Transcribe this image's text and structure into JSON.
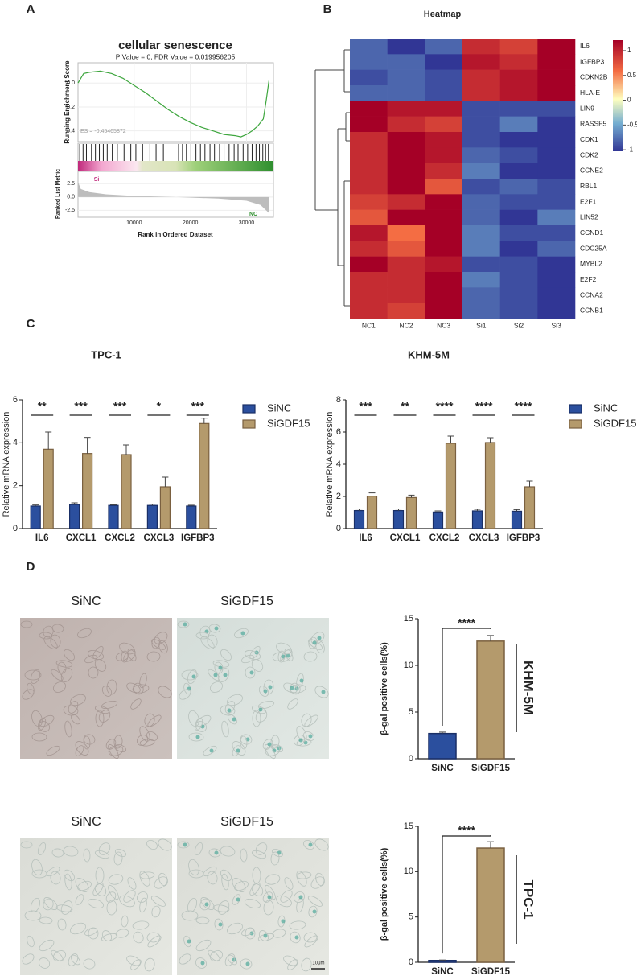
{
  "panel_labels": [
    "A",
    "B",
    "C",
    "D"
  ],
  "images": [
    {
      "label": "SiNC"
    },
    {
      "label": "SiGDF15"
    },
    {
      "label": "SiNC"
    },
    {
      "label": "SiGDF15"
    }
  ],
  "scale_bar": "10μm",
  "chart_data": [
    {
      "type": "line",
      "title": "cellular senescence",
      "subtitle": "P Value = 0; FDR Value = 0.019956205",
      "ylabel": "Running Enrichment Score",
      "xlabel": "Rank in Ordered Dataset",
      "annotation": "ES = -0.45465872",
      "color": "#3ea63e",
      "x": [
        0,
        1000,
        2000,
        4000,
        6000,
        8000,
        10000,
        12000,
        14000,
        16000,
        18000,
        20000,
        22000,
        24000,
        26000,
        28000,
        29000,
        30000,
        31000,
        32000,
        33000,
        33500,
        34000
      ],
      "y": [
        0,
        0.08,
        0.09,
        0.1,
        0.08,
        0.04,
        -0.02,
        -0.08,
        -0.15,
        -0.22,
        -0.28,
        -0.33,
        -0.37,
        -0.4,
        -0.43,
        -0.44,
        -0.45,
        -0.43,
        -0.4,
        -0.36,
        -0.3,
        -0.15,
        0.02
      ],
      "xlim": [
        0,
        34800
      ],
      "ylim": [
        -0.49,
        0.17
      ],
      "xticks": [
        10000,
        20000,
        30000
      ],
      "yticks": [
        {
          "value": 0,
          "label": "0.0"
        },
        {
          "value": -0.2,
          "label": "-0.2"
        },
        {
          "value": -0.4,
          "label": "-0.4"
        }
      ],
      "hits": [
        300,
        900,
        1500,
        2400,
        3100,
        3800,
        4500,
        5200,
        6100,
        7000,
        8200,
        9400,
        10300,
        11500,
        12800,
        13900,
        15200,
        17900,
        18600,
        19300,
        20100,
        21000,
        21800,
        22600,
        23500,
        24300,
        25200,
        26000,
        26900,
        27800,
        28500,
        29400,
        30200,
        31000,
        31700,
        32300,
        32900,
        33400,
        33900
      ],
      "metric": {
        "ylabel": "Ranked List Metric",
        "ylim": [
          -3.8,
          4.8
        ],
        "yticks": [
          2.5,
          {
            "value": 0,
            "label": "0.0"
          },
          -2.5
        ],
        "x": [
          0,
          500,
          2000,
          5000,
          10000,
          17000,
          25000,
          30000,
          32500,
          34000
        ],
        "y": [
          2.8,
          1.5,
          0.9,
          0.5,
          0.2,
          0,
          -0.3,
          -0.7,
          -1.5,
          -3.0
        ]
      },
      "group_labels": [
        "Si",
        "NC"
      ]
    },
    {
      "type": "heatmap",
      "title": "Heatmap",
      "rows": [
        "IL6",
        "IGFBP3",
        "CDKN2B",
        "HLA-E",
        "LIN9",
        "RASSF5",
        "CDK1",
        "CDK2",
        "CCNE2",
        "RBL1",
        "E2F1",
        "LIN52",
        "CCND1",
        "CDC25A",
        "MYBL2",
        "E2F2",
        "CCNA2",
        "CCNB1"
      ],
      "columns": [
        "NC1",
        "NC2",
        "NC3",
        "Si1",
        "Si2",
        "Si3"
      ],
      "values": [
        [
          -0.8,
          -1,
          -0.8,
          0.8,
          0.7,
          1.0
        ],
        [
          -0.8,
          -0.8,
          -1,
          0.9,
          0.8,
          1.1
        ],
        [
          -0.9,
          -0.8,
          -0.9,
          0.8,
          0.9,
          1.0
        ],
        [
          -0.8,
          -0.8,
          -0.9,
          0.8,
          0.9,
          1.0
        ],
        [
          1.0,
          0.9,
          0.9,
          -0.9,
          -0.9,
          -0.9
        ],
        [
          1.1,
          0.8,
          0.7,
          -0.9,
          -0.7,
          -1.0
        ],
        [
          0.8,
          1.0,
          0.9,
          -0.9,
          -1,
          -1
        ],
        [
          0.8,
          1.0,
          0.9,
          -0.8,
          -0.9,
          -1
        ],
        [
          0.8,
          1.1,
          0.8,
          -0.7,
          -1,
          -1
        ],
        [
          0.8,
          1.1,
          0.6,
          -0.9,
          -0.8,
          -0.9
        ],
        [
          0.7,
          0.8,
          1.1,
          -0.8,
          -0.9,
          -0.9
        ],
        [
          0.6,
          1.0,
          1.0,
          -0.8,
          -1,
          -0.7
        ],
        [
          0.9,
          0.5,
          1.2,
          -0.7,
          -0.9,
          -0.9
        ],
        [
          0.8,
          0.6,
          1.2,
          -0.7,
          -1,
          -0.8
        ],
        [
          1.0,
          0.8,
          0.9,
          -0.9,
          -0.9,
          -1
        ],
        [
          0.8,
          0.8,
          1.0,
          -0.7,
          -0.9,
          -1
        ],
        [
          0.8,
          0.8,
          1.0,
          -0.8,
          -0.9,
          -1
        ],
        [
          0.8,
          0.7,
          1.0,
          -0.8,
          -0.9,
          -1
        ]
      ],
      "clim": [
        -1.03,
        1.21
      ],
      "cticks": [
        1,
        0.5,
        0,
        -0.5,
        -1
      ]
    },
    {
      "type": "bar",
      "title": "TPC-1",
      "ylabel": "Relative mRNA expression",
      "categories": [
        "IL6",
        "CXCL1",
        "CXCL2",
        "CXCL3",
        "IGFBP3"
      ],
      "series": [
        {
          "name": "SiNC",
          "color": "#2b4f9e",
          "values": [
            1.05,
            1.12,
            1.08,
            1.08,
            1.05
          ],
          "errors": [
            0.05,
            0.08,
            0.03,
            0.06,
            0.04
          ]
        },
        {
          "name": "SiGDF15",
          "color": "#b49a6c",
          "values": [
            3.7,
            3.5,
            3.45,
            1.95,
            4.9
          ],
          "errors": [
            0.8,
            0.75,
            0.45,
            0.45,
            0.25
          ]
        }
      ],
      "significance": [
        "**",
        "***",
        "***",
        "*",
        "***"
      ],
      "ylim": [
        0,
        6
      ],
      "yticks": [
        0,
        2,
        4,
        6
      ]
    },
    {
      "type": "bar",
      "title": "KHM-5M",
      "ylabel": "Relative mRNA expression",
      "categories": [
        "IL6",
        "CXCL1",
        "CXCL2",
        "CXCL3",
        "IGFBP3"
      ],
      "series": [
        {
          "name": "SiNC",
          "color": "#2b4f9e",
          "values": [
            1.12,
            1.12,
            1.03,
            1.1,
            1.08
          ],
          "errors": [
            0.1,
            0.1,
            0.07,
            0.1,
            0.1
          ]
        },
        {
          "name": "SiGDF15",
          "color": "#b49a6c",
          "values": [
            2.02,
            1.93,
            5.3,
            5.35,
            2.6
          ],
          "errors": [
            0.2,
            0.15,
            0.45,
            0.3,
            0.35
          ]
        }
      ],
      "significance": [
        "***",
        "**",
        "****",
        "****",
        "****"
      ],
      "ylim": [
        0,
        8
      ],
      "yticks": [
        0,
        2,
        4,
        6,
        8
      ]
    },
    {
      "type": "bar",
      "ylabel": "β-gal positive cells(%)",
      "side_label": "KHM-5M",
      "categories": [
        "SiNC",
        "SiGDF15"
      ],
      "colors": [
        "#2b4f9e",
        "#b49a6c"
      ],
      "values": [
        2.7,
        12.6
      ],
      "errors": [
        0.15,
        0.6
      ],
      "significance": "****",
      "ylim": [
        0,
        15
      ],
      "yticks": [
        0,
        5,
        10,
        15
      ]
    },
    {
      "type": "bar",
      "ylabel": "β-gal positive cells(%)",
      "side_label": "TPC-1",
      "categories": [
        "SiNC",
        "SiGDF15"
      ],
      "colors": [
        "#2b4f9e",
        "#b49a6c"
      ],
      "values": [
        0.2,
        12.6
      ],
      "errors": [
        0.05,
        0.7
      ],
      "significance": "****",
      "ylim": [
        0,
        15
      ],
      "yticks": [
        0,
        5,
        10,
        15
      ]
    }
  ]
}
